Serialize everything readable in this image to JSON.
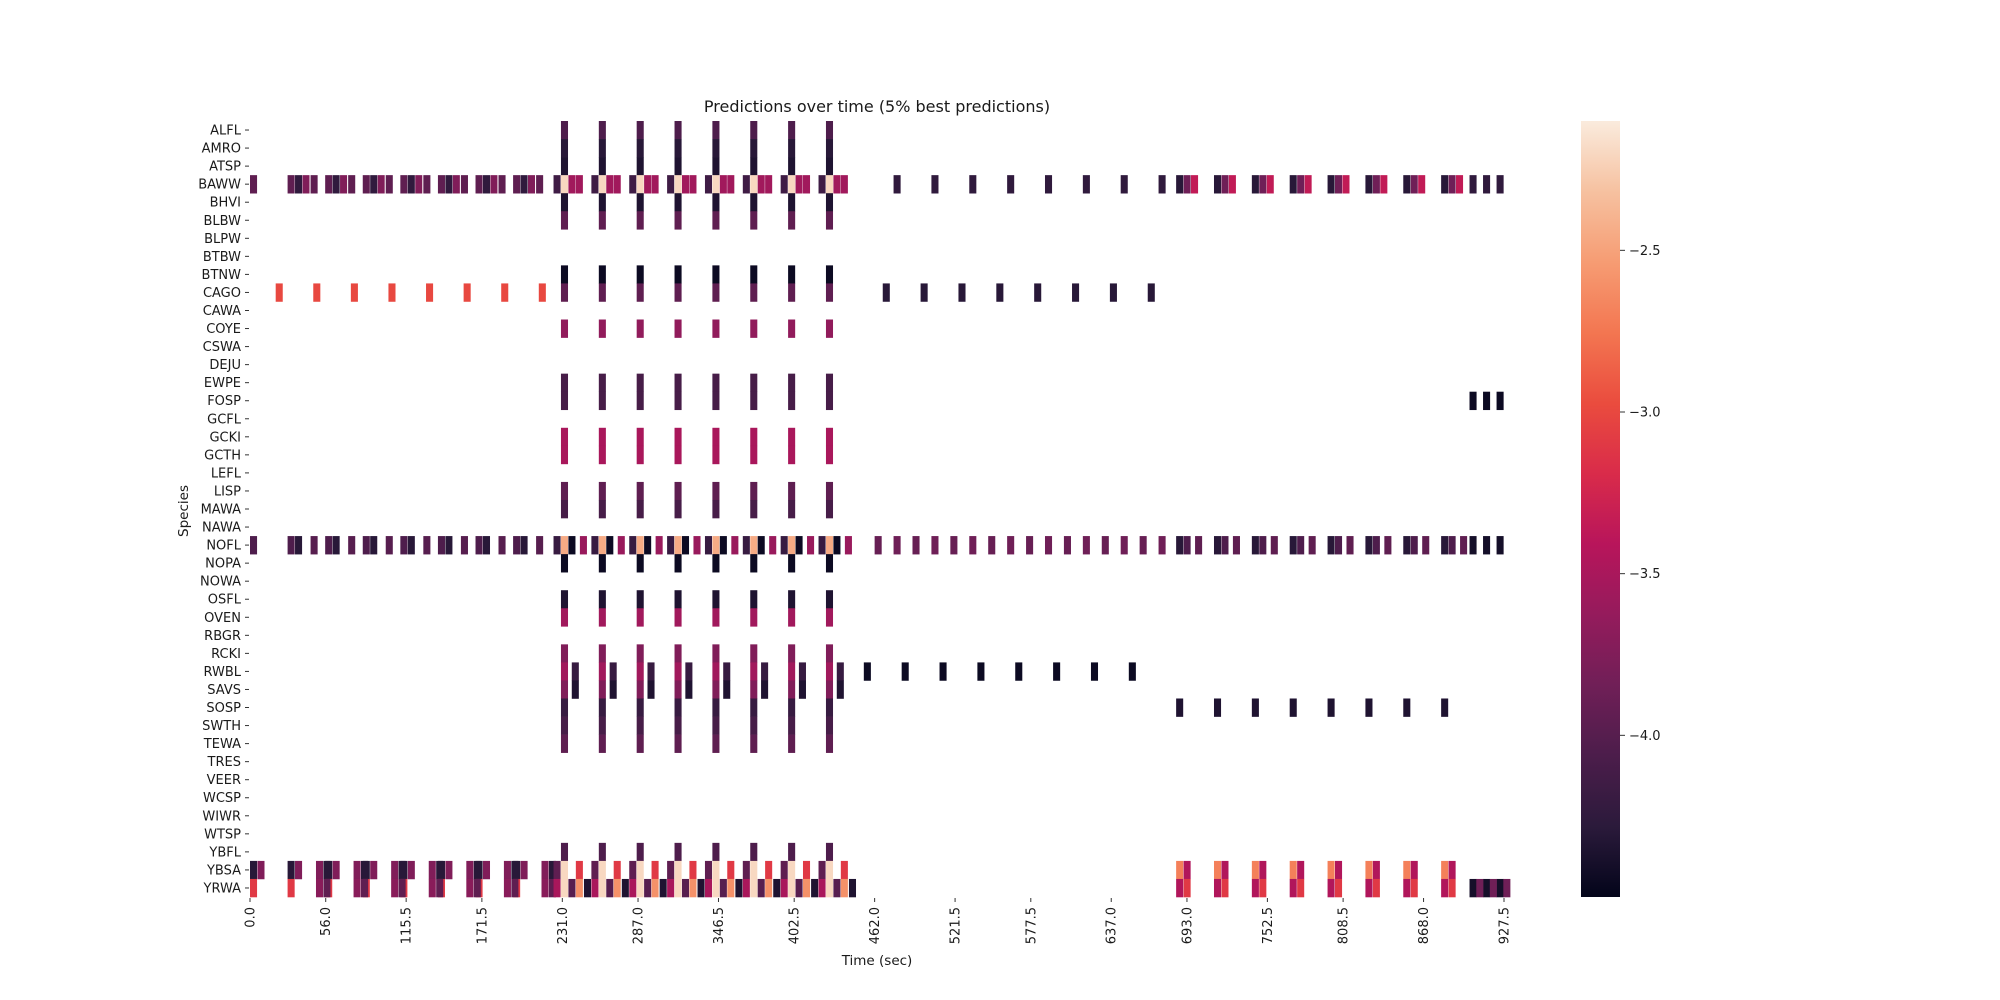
{
  "chart_data": {
    "type": "heatmap",
    "title": "Predictions over time (5% best predictions)",
    "xlabel": "Time (sec)",
    "ylabel": "Species",
    "xlim": [
      0,
      927.5
    ],
    "bin_width_sec": 5.5,
    "x_tick_labels": [
      "0.0",
      "56.0",
      "115.5",
      "171.5",
      "231.0",
      "287.0",
      "346.5",
      "402.5",
      "462.0",
      "521.5",
      "577.5",
      "637.0",
      "693.0",
      "752.5",
      "808.5",
      "868.0",
      "927.5"
    ],
    "x_tick_values": [
      0.0,
      56.0,
      115.5,
      171.5,
      231.0,
      287.0,
      346.5,
      402.5,
      462.0,
      521.5,
      577.5,
      637.0,
      693.0,
      752.5,
      808.5,
      868.0,
      927.5
    ],
    "species": [
      "ALFL",
      "AMRO",
      "ATSP",
      "BAWW",
      "BHVI",
      "BLBW",
      "BLPW",
      "BTBW",
      "BTNW",
      "CAGO",
      "CAWA",
      "COYE",
      "CSWA",
      "DEJU",
      "EWPE",
      "FOSP",
      "GCFL",
      "GCKI",
      "GCTH",
      "LEFL",
      "LISP",
      "MAWA",
      "NAWA",
      "NOFL",
      "NOPA",
      "NOWA",
      "OSFL",
      "OVEN",
      "RBGR",
      "RCKI",
      "RWBL",
      "SAVS",
      "SOSP",
      "SWTH",
      "TEWA",
      "TRES",
      "VEER",
      "WCSP",
      "WIWR",
      "WTSP",
      "YBFL",
      "YBSA",
      "YRWA"
    ],
    "colorbar": {
      "vmin": -4.5,
      "vmax": -2.1,
      "ticks": [
        -2.5,
        -3.0,
        -3.5,
        -4.0
      ],
      "tick_labels": [
        "−2.5",
        "−3.0",
        "−3.5",
        "−4.0"
      ],
      "colormap": "rocket",
      "stops": [
        "#03051a",
        "#2b1a3b",
        "#4c1d4b",
        "#701f57",
        "#951b5c",
        "#b8155b",
        "#d92b4a",
        "#ea4c3e",
        "#f37651",
        "#f69c73",
        "#f6c1a0",
        "#faebdd"
      ]
    },
    "groups": {
      "mid_times": [
        230,
        258,
        286,
        314,
        342,
        370,
        398,
        426
      ],
      "early_times": [
        0,
        27.8,
        55.6,
        83.4,
        111.2,
        139,
        166.8,
        194.6
      ],
      "late_times": [
        476,
        504,
        532,
        560,
        588,
        616,
        644,
        672
      ],
      "tail_times": [
        685,
        713,
        741,
        769,
        797,
        825,
        853,
        881
      ],
      "end_times": [
        902,
        912,
        922
      ]
    },
    "rows": [
      {
        "species": "ALFL",
        "cells": [
          {
            "set": "mid",
            "offset": 0,
            "value": -4.05
          }
        ]
      },
      {
        "species": "AMRO",
        "cells": [
          {
            "set": "mid",
            "offset": 0,
            "value": -4.3
          }
        ]
      },
      {
        "species": "ATSP",
        "cells": [
          {
            "set": "mid",
            "offset": 0,
            "value": -4.35
          }
        ]
      },
      {
        "species": "BAWW",
        "cells": [
          {
            "set": "early",
            "offset": 0,
            "value": -3.95
          },
          {
            "set": "early",
            "offset": 5.5,
            "value": -4.25,
            "skip_first": true
          },
          {
            "set": "early",
            "offset": 11,
            "value": -3.75,
            "skip_first": true
          },
          {
            "set": "early",
            "offset": 17,
            "value": -3.95,
            "skip_first": true
          },
          {
            "set": "mid",
            "offset": -5.5,
            "value": -4.15
          },
          {
            "set": "mid",
            "offset": 0,
            "value": -2.2
          },
          {
            "set": "mid",
            "offset": 5.5,
            "value": -3.55
          },
          {
            "set": "mid",
            "offset": 11,
            "value": -3.55
          },
          {
            "set": "late",
            "offset": 0,
            "value": -4.25
          },
          {
            "set": "tail",
            "offset": 0,
            "value": -4.3
          },
          {
            "set": "tail",
            "offset": 5.5,
            "value": -3.85
          },
          {
            "set": "tail",
            "offset": 11,
            "value": -3.35
          },
          {
            "set": "end",
            "offset": 0,
            "value": -4.25
          }
        ]
      },
      {
        "species": "BHVI",
        "cells": [
          {
            "set": "mid",
            "offset": 0,
            "value": -4.35
          }
        ]
      },
      {
        "species": "BLBW",
        "cells": [
          {
            "set": "mid",
            "offset": 0,
            "value": -3.95
          }
        ]
      },
      {
        "species": "BLPW",
        "cells": []
      },
      {
        "species": "BTBW",
        "cells": []
      },
      {
        "species": "BTNW",
        "cells": [
          {
            "set": "mid",
            "offset": 0,
            "value": -4.45
          }
        ]
      },
      {
        "species": "CAGO",
        "cells": [
          {
            "set": "early",
            "offset": 19,
            "value": -3.0
          },
          {
            "set": "mid",
            "offset": 0,
            "value": -3.95
          },
          {
            "set": "late",
            "offset": -8,
            "value": -4.3
          }
        ]
      },
      {
        "species": "CAWA",
        "cells": []
      },
      {
        "species": "COYE",
        "cells": [
          {
            "set": "mid",
            "offset": 0,
            "value": -3.65
          }
        ]
      },
      {
        "species": "CSWA",
        "cells": []
      },
      {
        "species": "DEJU",
        "cells": []
      },
      {
        "species": "EWPE",
        "cells": [
          {
            "set": "mid",
            "offset": 0,
            "value": -4.1
          }
        ]
      },
      {
        "species": "FOSP",
        "cells": [
          {
            "set": "mid",
            "offset": 0,
            "value": -4.1
          },
          {
            "set": "end",
            "offset": 0,
            "value": -4.45
          }
        ]
      },
      {
        "species": "GCFL",
        "cells": []
      },
      {
        "species": "GCKI",
        "cells": [
          {
            "set": "mid",
            "offset": 0,
            "value": -3.5
          }
        ]
      },
      {
        "species": "GCTH",
        "cells": [
          {
            "set": "mid",
            "offset": 0,
            "value": -3.5
          }
        ]
      },
      {
        "species": "LEFL",
        "cells": []
      },
      {
        "species": "LISP",
        "cells": [
          {
            "set": "mid",
            "offset": 0,
            "value": -3.95
          }
        ]
      },
      {
        "species": "MAWA",
        "cells": [
          {
            "set": "mid",
            "offset": 0,
            "value": -4.1
          }
        ]
      },
      {
        "species": "NAWA",
        "cells": []
      },
      {
        "species": "NOFL",
        "cells": [
          {
            "set": "early",
            "offset": 0,
            "value": -4.05
          },
          {
            "set": "early",
            "offset": 5.5,
            "value": -4.3,
            "skip_first": true
          },
          {
            "set": "early",
            "offset": 17,
            "value": -4.0,
            "skip_first": true
          },
          {
            "set": "mid",
            "offset": -5.5,
            "value": -4.2
          },
          {
            "set": "mid",
            "offset": 0,
            "value": -2.45
          },
          {
            "set": "mid",
            "offset": 5.5,
            "value": -4.45
          },
          {
            "set": "mid",
            "offset": 14,
            "value": -3.6
          },
          {
            "set": "late",
            "offset": -14,
            "value": -3.9
          },
          {
            "set": "late",
            "offset": 0,
            "value": -3.85
          },
          {
            "set": "tail",
            "offset": 0,
            "value": -4.3
          },
          {
            "set": "tail",
            "offset": 5.5,
            "value": -4.05
          },
          {
            "set": "tail",
            "offset": 14,
            "value": -3.95
          },
          {
            "set": "end",
            "offset": 0,
            "value": -4.4
          }
        ]
      },
      {
        "species": "NOPA",
        "cells": [
          {
            "set": "mid",
            "offset": 0,
            "value": -4.45
          }
        ]
      },
      {
        "species": "NOWA",
        "cells": []
      },
      {
        "species": "OSFL",
        "cells": [
          {
            "set": "mid",
            "offset": 0,
            "value": -4.35
          }
        ]
      },
      {
        "species": "OVEN",
        "cells": [
          {
            "set": "mid",
            "offset": 0,
            "value": -3.55
          }
        ]
      },
      {
        "species": "RBGR",
        "cells": []
      },
      {
        "species": "RCKI",
        "cells": [
          {
            "set": "mid",
            "offset": 0,
            "value": -3.75
          }
        ]
      },
      {
        "species": "RWBL",
        "cells": [
          {
            "set": "mid",
            "offset": 0,
            "value": -3.55
          },
          {
            "set": "mid",
            "offset": 8,
            "value": -4.2
          },
          {
            "set": "late",
            "offset": -22,
            "value": -4.45
          }
        ]
      },
      {
        "species": "SAVS",
        "cells": [
          {
            "set": "mid",
            "offset": 0,
            "value": -3.75
          },
          {
            "set": "mid",
            "offset": 8,
            "value": -4.35
          }
        ]
      },
      {
        "species": "SOSP",
        "cells": [
          {
            "set": "mid",
            "offset": 0,
            "value": -4.2
          },
          {
            "set": "tail",
            "offset": 0,
            "value": -4.35
          }
        ]
      },
      {
        "species": "SWTH",
        "cells": [
          {
            "set": "mid",
            "offset": 0,
            "value": -4.1
          }
        ]
      },
      {
        "species": "TEWA",
        "cells": [
          {
            "set": "mid",
            "offset": 0,
            "value": -3.95
          }
        ]
      },
      {
        "species": "TRES",
        "cells": []
      },
      {
        "species": "VEER",
        "cells": []
      },
      {
        "species": "WCSP",
        "cells": []
      },
      {
        "species": "WIWR",
        "cells": []
      },
      {
        "species": "WTSP",
        "cells": []
      },
      {
        "species": "YBFL",
        "cells": [
          {
            "set": "mid",
            "offset": 0,
            "value": -4.05
          }
        ]
      },
      {
        "species": "YBSA",
        "cells": [
          {
            "set": "early",
            "offset": 0,
            "value": -4.3
          },
          {
            "set": "early",
            "offset": 5.5,
            "value": -3.75
          },
          {
            "set": "early",
            "offset": 21,
            "value": -3.75,
            "skip_first": true
          },
          {
            "set": "early",
            "offset": 26.5,
            "value": -4.3,
            "skip_first": true
          },
          {
            "set": "mid",
            "offset": -5.5,
            "value": -3.95
          },
          {
            "set": "mid",
            "offset": 0,
            "value": -2.2
          },
          {
            "set": "mid",
            "offset": 11,
            "value": -3.1
          },
          {
            "set": "tail",
            "offset": 0,
            "value": -2.7
          },
          {
            "set": "tail",
            "offset": 5.5,
            "value": -3.45
          }
        ]
      },
      {
        "species": "YRWA",
        "cells": [
          {
            "set": "early",
            "offset": 0,
            "value": -3.1
          },
          {
            "set": "early",
            "offset": 21,
            "value": -3.7,
            "skip_first": true
          },
          {
            "set": "early",
            "offset": 26.5,
            "value": -3.95,
            "skip_first": true
          },
          {
            "set": "mid",
            "offset": -5.5,
            "value": -3.5
          },
          {
            "set": "mid",
            "offset": 0,
            "value": -2.2
          },
          {
            "set": "mid",
            "offset": 5.5,
            "value": -4.0
          },
          {
            "set": "mid",
            "offset": 11,
            "value": -2.6
          },
          {
            "set": "mid",
            "offset": 17,
            "value": -4.35
          },
          {
            "set": "tail",
            "offset": 0,
            "value": -3.45
          },
          {
            "set": "tail",
            "offset": 5.5,
            "value": -3.1
          },
          {
            "set": "end",
            "offset": 0,
            "value": -4.4
          },
          {
            "set": "end",
            "offset": 5,
            "value": -3.85
          }
        ]
      }
    ]
  }
}
